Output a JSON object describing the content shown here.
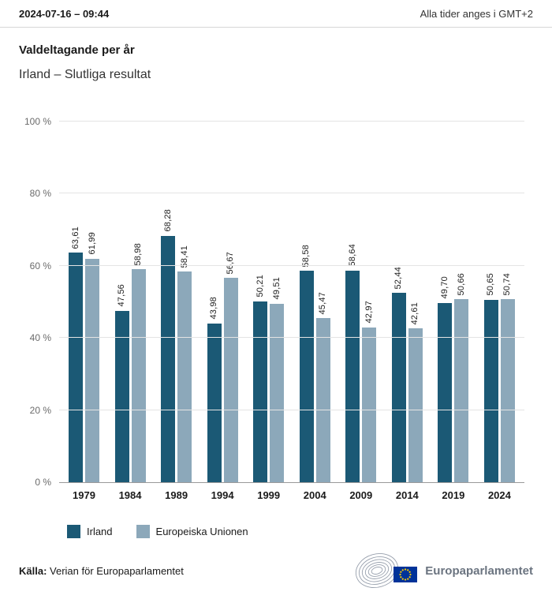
{
  "topbar": {
    "datetime": "2024-07-16 – 09:44",
    "timezone_note": "Alla tider anges i GMT+2"
  },
  "header": {
    "title": "Valdeltagande per år",
    "subtitle": "Irland – Slutliga resultat"
  },
  "chart_data": {
    "type": "bar",
    "title": "Valdeltagande per år",
    "subtitle": "Irland – Slutliga resultat",
    "categories": [
      "1979",
      "1984",
      "1989",
      "1994",
      "1999",
      "2004",
      "2009",
      "2014",
      "2019",
      "2024"
    ],
    "series": [
      {
        "name": "Irland",
        "color": "#1b5975",
        "values": [
          63.61,
          47.56,
          68.28,
          43.98,
          50.21,
          58.58,
          58.64,
          52.44,
          49.7,
          50.65
        ],
        "labels": [
          "63,61",
          "47,56",
          "68,28",
          "43,98",
          "50,21",
          "58,58",
          "58,64",
          "52,44",
          "49,70",
          "50,65"
        ]
      },
      {
        "name": "Europeiska Unionen",
        "color": "#8ca8ba",
        "values": [
          61.99,
          58.98,
          58.41,
          56.67,
          49.51,
          45.47,
          42.97,
          42.61,
          50.66,
          50.74
        ],
        "labels": [
          "61,99",
          "58,98",
          "58,41",
          "56,67",
          "49,51",
          "45,47",
          "42,97",
          "42,61",
          "50,66",
          "50,74"
        ]
      }
    ],
    "ylim": [
      0,
      100
    ],
    "yticks": [
      0,
      20,
      40,
      60,
      80,
      100
    ],
    "ytick_labels": [
      "0 %",
      "20 %",
      "40 %",
      "60 %",
      "80 %",
      "100 %"
    ],
    "grid": true,
    "legend_position": "bottom",
    "value_label_orientation": "vertical"
  },
  "footer": {
    "source_label": "Källa:",
    "source_text": "Verian för Europaparlamentet",
    "logo_text": "Europaparlamentet"
  },
  "colors": {
    "irland": "#1b5975",
    "eu": "#8ca8ba",
    "flag_blue": "#003399",
    "flag_star": "#ffcc00"
  }
}
